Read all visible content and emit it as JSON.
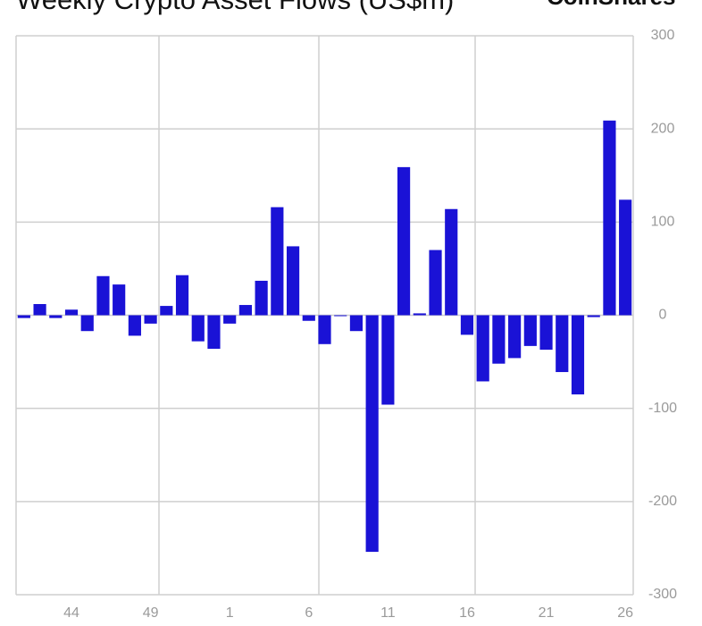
{
  "chart_data": {
    "type": "bar",
    "title": "Weekly Crypto Asset Flows (US$m)",
    "brand": "CoinShares",
    "categories": [
      null,
      null,
      null,
      "44",
      null,
      null,
      null,
      null,
      "49",
      null,
      null,
      null,
      null,
      "1",
      null,
      null,
      null,
      null,
      "6",
      null,
      null,
      null,
      null,
      "11",
      null,
      null,
      null,
      null,
      "16",
      null,
      null,
      null,
      null,
      "21",
      null,
      null,
      null,
      null,
      "26"
    ],
    "values": [
      -3,
      12,
      -3,
      6,
      -17,
      42,
      33,
      -22,
      -9,
      10,
      43,
      -28,
      -36,
      -9,
      11,
      37,
      116,
      74,
      -6,
      -31,
      -1,
      -17,
      -254,
      -96,
      159,
      2,
      70,
      114,
      -21,
      -71,
      -52,
      -46,
      -33,
      -37,
      -61,
      -85,
      -2,
      209,
      124
    ],
    "color": "#1a12d6",
    "ylim": [
      -300,
      300
    ],
    "yticks": [
      -300,
      -200,
      -100,
      0,
      100,
      200,
      300
    ],
    "grid": true
  }
}
